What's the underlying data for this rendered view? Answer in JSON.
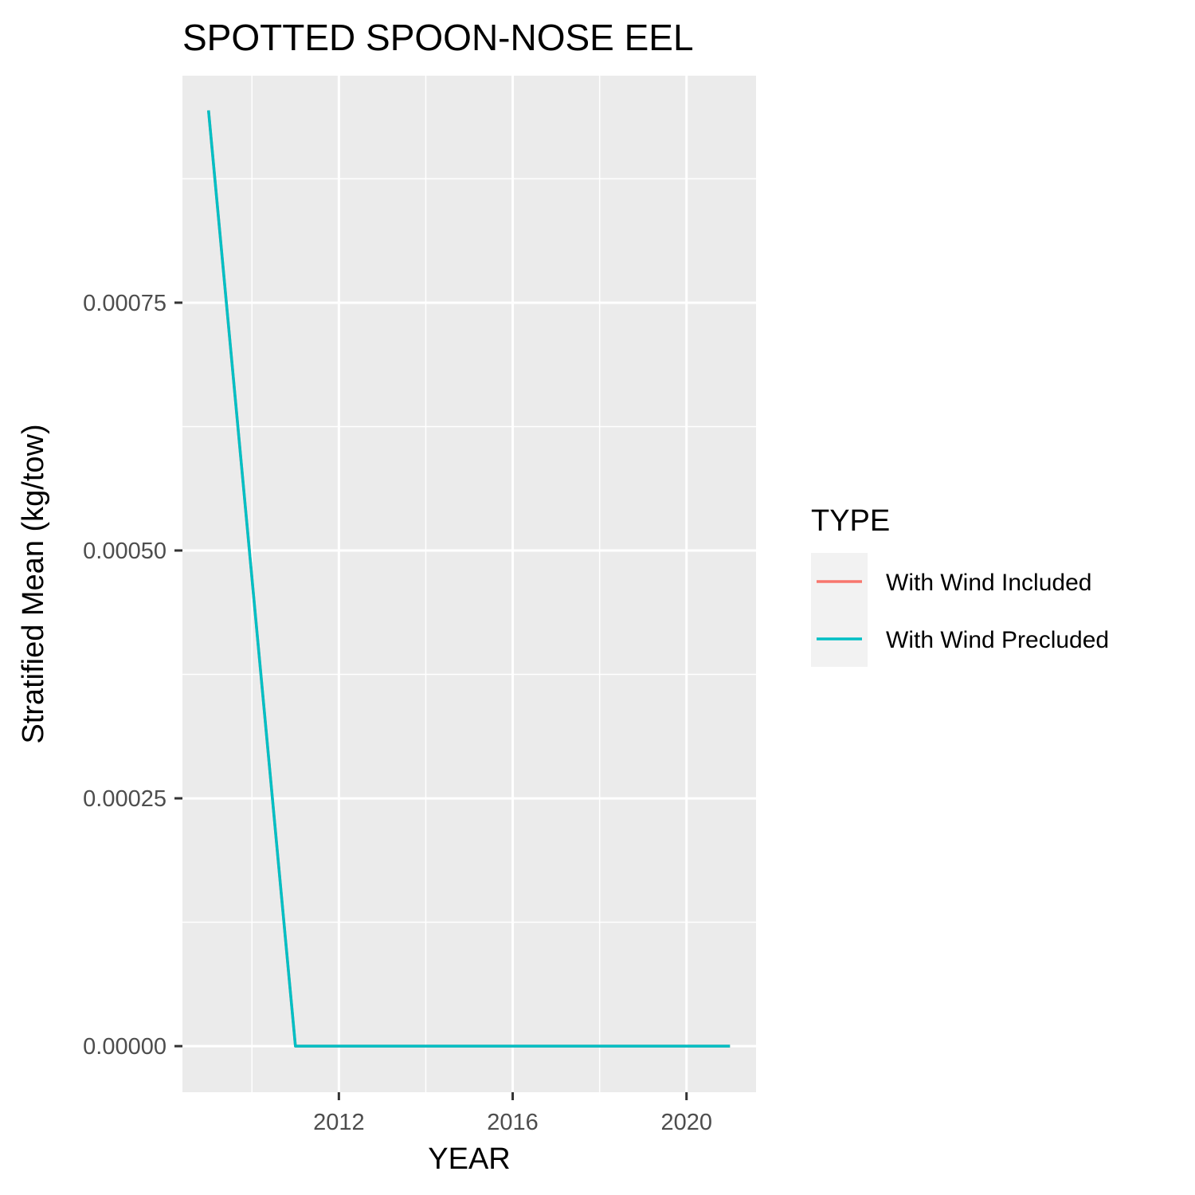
{
  "chart_data": {
    "type": "line",
    "title": "SPOTTED SPOON-NOSE EEL",
    "xlabel": "YEAR",
    "ylabel": "Stratified Mean (kg/tow)",
    "x_ticks": [
      2012,
      2016,
      2020
    ],
    "y_ticks": [
      0,
      0.00025,
      0.0005,
      0.00075
    ],
    "y_tick_labels": [
      "0.00000",
      "0.00025",
      "0.00050",
      "0.00075"
    ],
    "xlim": [
      2008.4,
      2021.6
    ],
    "ylim": [
      -4.65e-05,
      0.000979
    ],
    "grid": true,
    "legend_title": "TYPE",
    "legend_position": "right",
    "series": [
      {
        "name": "With Wind Included",
        "color": "#F8766D",
        "x": [
          2009,
          2011,
          2012,
          2013,
          2014,
          2015,
          2016,
          2017,
          2018,
          2019,
          2020,
          2021
        ],
        "y": [
          0.000944,
          0,
          0,
          0,
          0,
          0,
          0,
          0,
          0,
          0,
          0,
          0
        ]
      },
      {
        "name": "With Wind Precluded",
        "color": "#00BFC4",
        "x": [
          2009,
          2011,
          2012,
          2013,
          2014,
          2015,
          2016,
          2017,
          2018,
          2019,
          2020,
          2021
        ],
        "y": [
          0.000944,
          0,
          0,
          0,
          0,
          0,
          0,
          0,
          0,
          0,
          0,
          0
        ]
      }
    ]
  }
}
